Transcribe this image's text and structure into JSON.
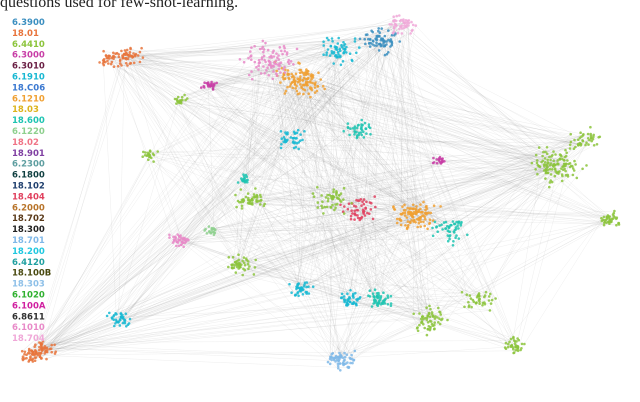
{
  "caption": "questions used for few-shot-learning.",
  "legend": [
    {
      "label": "6.3900",
      "color": "#3b8fc0"
    },
    {
      "label": "18.01",
      "color": "#e8743c"
    },
    {
      "label": "6.4410",
      "color": "#8cc43c"
    },
    {
      "label": "6.3000",
      "color": "#c83ea6"
    },
    {
      "label": "6.3010",
      "color": "#6a1f44"
    },
    {
      "label": "6.1910",
      "color": "#18b8d2"
    },
    {
      "label": "18.C06",
      "color": "#3a78d0"
    },
    {
      "label": "6.1210",
      "color": "#f0a032"
    },
    {
      "label": "18.03",
      "color": "#dcb41e"
    },
    {
      "label": "18.600",
      "color": "#1ec4b2"
    },
    {
      "label": "6.1220",
      "color": "#8ed08e"
    },
    {
      "label": "18.02",
      "color": "#f07486"
    },
    {
      "label": "18.901",
      "color": "#8040a2"
    },
    {
      "label": "6.2300",
      "color": "#5e9ea0"
    },
    {
      "label": "6.1800",
      "color": "#0f3f40"
    },
    {
      "label": "18.102",
      "color": "#1f3f6e"
    },
    {
      "label": "18.404",
      "color": "#e0405e"
    },
    {
      "label": "6.2000",
      "color": "#b8742a"
    },
    {
      "label": "18.702",
      "color": "#5a3a1a"
    },
    {
      "label": "18.300",
      "color": "#222222"
    },
    {
      "label": "18.701",
      "color": "#7fb8e8"
    },
    {
      "label": "18.200",
      "color": "#20c8e0"
    },
    {
      "label": "6.4120",
      "color": "#20a0a0"
    },
    {
      "label": "18.100B",
      "color": "#4a4a10"
    },
    {
      "label": "18.303",
      "color": "#8ec0e8"
    },
    {
      "label": "6.1020",
      "color": "#30b030"
    },
    {
      "label": "6.100A",
      "color": "#d020a0"
    },
    {
      "label": "6.8611",
      "color": "#303030"
    },
    {
      "label": "6.1010",
      "color": "#e88ac8"
    },
    {
      "label": "18.704",
      "color": "#f0a8d8"
    }
  ]
}
